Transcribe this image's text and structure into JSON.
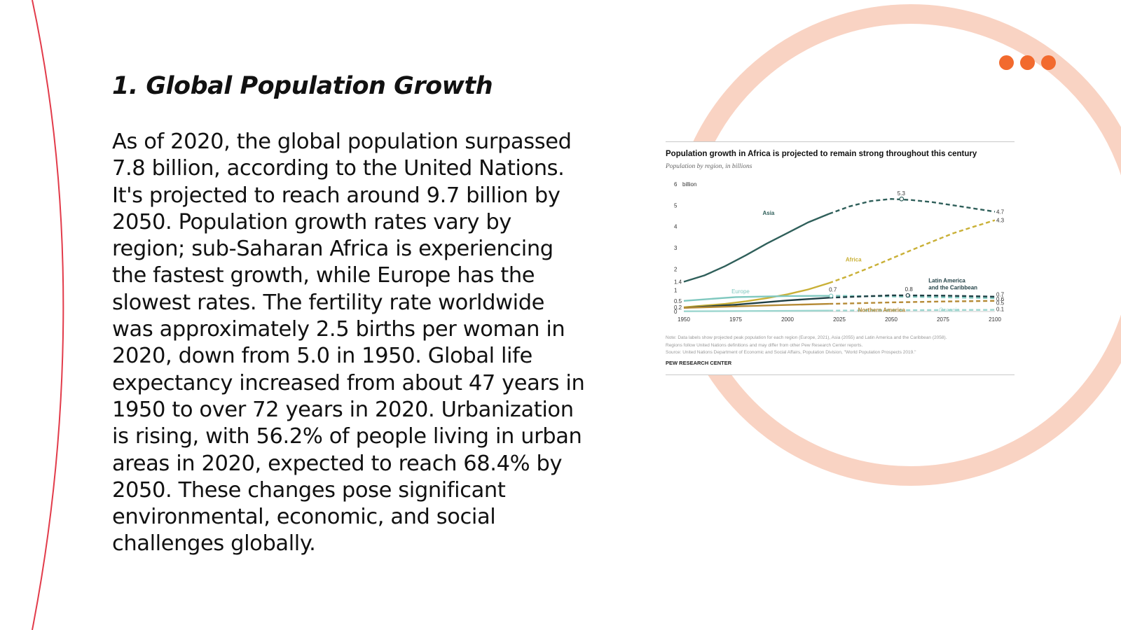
{
  "slide": {
    "title": "1. Global Population Growth",
    "body": "As of 2020, the global population surpassed 7.8 billion, according to the United Nations. It's projected to reach around 9.7 billion by 2050. Population growth rates vary by region; sub-Saharan Africa is experiencing the fastest growth, while Europe has the slowest rates. The fertility rate worldwide was approximately 2.5 births per woman in 2020, down from 5.0 in 1950. Global life expectancy increased from about 47 years in 1950 to over 72 years in 2020. Urbanization is rising, with 56.2% of people living in urban areas in 2020, expected to reach 68.4% by 2050. These changes pose significant environmental, economic, and social challenges globally.",
    "decoration": {
      "dots_count": 3,
      "dot_color": "#f26a2e",
      "arc_color": "#f9d3c3",
      "edge_line_color": "#e23b4a"
    }
  },
  "chart_data": {
    "type": "line",
    "title": "Population growth in Africa is projected to remain strong throughout this century",
    "subtitle": "Population by region, in billions",
    "ylabel": "billion",
    "xlim": [
      1950,
      2100
    ],
    "ylim": [
      0,
      6
    ],
    "x_ticks": [
      1950,
      1975,
      2000,
      2025,
      2050,
      2075,
      2100
    ],
    "y_ticks": [
      0,
      1,
      2,
      3,
      4,
      5,
      6
    ],
    "projection_start": 2020,
    "series": [
      {
        "name": "Asia",
        "color": "#2f5f5a",
        "x": [
          1950,
          1960,
          1970,
          1980,
          1990,
          2000,
          2010,
          2020,
          2030,
          2040,
          2050,
          2060,
          2070,
          2080,
          2090,
          2100
        ],
        "values": [
          1.4,
          1.7,
          2.14,
          2.65,
          3.2,
          3.7,
          4.2,
          4.6,
          4.95,
          5.2,
          5.3,
          5.25,
          5.15,
          5.0,
          4.85,
          4.7
        ]
      },
      {
        "name": "Africa",
        "color": "#c9b036",
        "x": [
          1950,
          1960,
          1970,
          1980,
          1990,
          2000,
          2010,
          2020,
          2030,
          2040,
          2050,
          2060,
          2070,
          2080,
          2090,
          2100
        ],
        "values": [
          0.2,
          0.28,
          0.36,
          0.48,
          0.63,
          0.81,
          1.04,
          1.34,
          1.69,
          2.08,
          2.49,
          2.9,
          3.3,
          3.69,
          4.0,
          4.3
        ]
      },
      {
        "name": "Europe",
        "color": "#7fc8bf",
        "x": [
          1950,
          1975,
          2000,
          2025,
          2050,
          2075,
          2100
        ],
        "values": [
          0.5,
          0.68,
          0.73,
          0.74,
          0.71,
          0.67,
          0.63
        ]
      },
      {
        "name": "Latin America and the Caribbean",
        "color": "#1f3f44",
        "x": [
          1950,
          1975,
          2000,
          2020,
          2050,
          2075,
          2100
        ],
        "values": [
          0.17,
          0.32,
          0.52,
          0.65,
          0.76,
          0.75,
          0.7
        ]
      },
      {
        "name": "Northern America",
        "color": "#b58a35",
        "x": [
          1950,
          1975,
          2000,
          2025,
          2050,
          2075,
          2100
        ],
        "values": [
          0.17,
          0.24,
          0.31,
          0.37,
          0.43,
          0.47,
          0.5
        ]
      },
      {
        "name": "Oceania",
        "color": "#9cd6cf",
        "x": [
          1950,
          2000,
          2050,
          2100
        ],
        "values": [
          0.01,
          0.03,
          0.06,
          0.08
        ]
      }
    ],
    "annotations": [
      "1.4",
      "0.5",
      "0.2",
      "0.7",
      "0.8",
      "5.3",
      "4.7",
      "4.3",
      "0.7",
      "0.6",
      "0.5",
      "0.1"
    ],
    "note_lines": [
      "Note: Data labels show projected peak population for each region (Europe, 2021), Asia (2055) and Latin America and the Caribbean (2058).",
      "Regions follow United Nations definitions and may differ from other Pew Research Center reports.",
      "Source: United Nations Department of Economic and Social Affairs, Population Division, \"World Population Prospects 2019.\""
    ],
    "source_brand": "PEW RESEARCH CENTER"
  }
}
